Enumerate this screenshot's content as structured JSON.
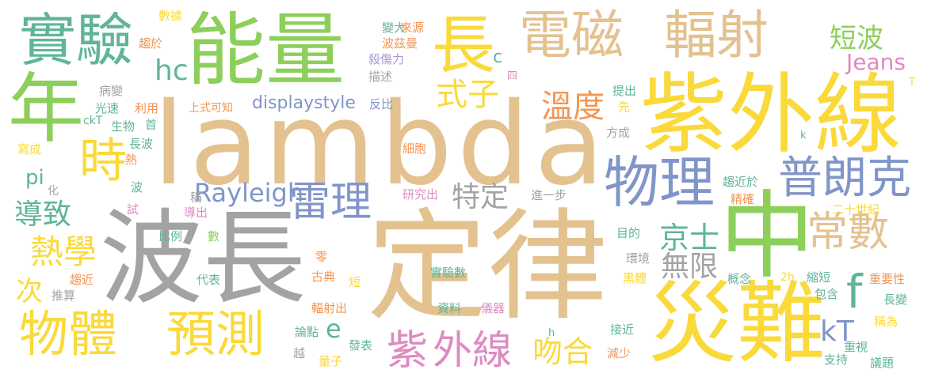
{
  "palette": {
    "tan": "#e3c28f",
    "gray": "#a3a3a3",
    "green": "#8ccf5a",
    "yellow": "#fad93b",
    "teal": "#5fb597",
    "blue": "#8095c9",
    "orange": "#f39552",
    "pink": "#df8ac1",
    "purple": "#a995d5"
  },
  "words": [
    {
      "text": "lambda",
      "color": "tan"
    },
    {
      "text": "波長",
      "color": "gray"
    },
    {
      "text": "定律",
      "color": "tan"
    },
    {
      "text": "能量",
      "color": "green"
    },
    {
      "text": "紫外線",
      "color": "yellow"
    },
    {
      "text": "電磁",
      "color": "tan"
    },
    {
      "text": "輻射",
      "color": "tan"
    },
    {
      "text": "年",
      "color": "green"
    },
    {
      "text": "中",
      "color": "green"
    },
    {
      "text": "災難",
      "color": "yellow"
    },
    {
      "text": "實驗",
      "color": "teal"
    },
    {
      "text": "長",
      "color": "yellow"
    },
    {
      "text": "物理",
      "color": "blue"
    },
    {
      "text": "普朗克",
      "color": "blue"
    },
    {
      "text": "物體",
      "color": "yellow"
    },
    {
      "text": "預測",
      "color": "yellow"
    },
    {
      "text": "時",
      "color": "yellow"
    },
    {
      "text": "雷理",
      "color": "blue"
    },
    {
      "text": "常數",
      "color": "tan"
    },
    {
      "text": "紫",
      "color": "pink"
    },
    {
      "text": "外線",
      "color": "pink"
    },
    {
      "text": "熱學",
      "color": "yellow"
    },
    {
      "text": "溫度",
      "color": "orange"
    },
    {
      "text": "式子",
      "color": "yellow"
    },
    {
      "text": "短波",
      "color": "green"
    },
    {
      "text": "Rayleigh",
      "color": "blue"
    },
    {
      "text": "特定",
      "color": "gray"
    },
    {
      "text": "京士",
      "color": "teal"
    },
    {
      "text": "無限",
      "color": "gray"
    },
    {
      "text": "導致",
      "color": "teal"
    },
    {
      "text": "吻合",
      "color": "yellow"
    },
    {
      "text": "hc",
      "color": "teal"
    },
    {
      "text": "f",
      "color": "teal"
    },
    {
      "text": "kT",
      "color": "blue"
    },
    {
      "text": "Jeans",
      "color": "pink"
    },
    {
      "text": "displaystyle",
      "color": "blue"
    },
    {
      "text": "次",
      "color": "yellow"
    },
    {
      "text": "e",
      "color": "teal"
    },
    {
      "text": "c",
      "color": "teal"
    },
    {
      "text": "pi",
      "color": "teal"
    },
    {
      "text": "數據",
      "color": "yellow"
    },
    {
      "text": "趨於",
      "color": "orange"
    },
    {
      "text": "變大",
      "color": "teal"
    },
    {
      "text": "來源",
      "color": "orange"
    },
    {
      "text": "波茲曼",
      "color": "orange"
    },
    {
      "text": "殺傷力",
      "color": "purple"
    },
    {
      "text": "描述",
      "color": "gray"
    },
    {
      "text": "病變",
      "color": "gray"
    },
    {
      "text": "光速",
      "color": "teal"
    },
    {
      "text": "利用",
      "color": "orange"
    },
    {
      "text": "上式可知",
      "color": "orange"
    },
    {
      "text": "反比",
      "color": "blue"
    },
    {
      "text": "提出",
      "color": "teal"
    },
    {
      "text": "先",
      "color": "yellow"
    },
    {
      "text": "生物",
      "color": "teal"
    },
    {
      "text": "首",
      "color": "teal"
    },
    {
      "text": "ckT",
      "color": "teal"
    },
    {
      "text": "寫成",
      "color": "yellow"
    },
    {
      "text": "長波",
      "color": "teal"
    },
    {
      "text": "細胞",
      "color": "orange"
    },
    {
      "text": "方成",
      "color": "gray"
    },
    {
      "text": "熱",
      "color": "orange"
    },
    {
      "text": "波",
      "color": "teal"
    },
    {
      "text": "化",
      "color": "gray"
    },
    {
      "text": "稱",
      "color": "gray"
    },
    {
      "text": "試",
      "color": "pink"
    },
    {
      "text": "導出",
      "color": "pink"
    },
    {
      "text": "研究出",
      "color": "pink"
    },
    {
      "text": "進一步",
      "color": "gray"
    },
    {
      "text": "趨近於",
      "color": "teal"
    },
    {
      "text": "精確",
      "color": "orange"
    },
    {
      "text": "二十世紀",
      "color": "yellow"
    },
    {
      "text": "比例",
      "color": "teal"
    },
    {
      "text": "數",
      "color": "green"
    },
    {
      "text": "目的",
      "color": "teal"
    },
    {
      "text": "環境",
      "color": "gray"
    },
    {
      "text": "零",
      "color": "orange"
    },
    {
      "text": "概念",
      "color": "teal"
    },
    {
      "text": "2h",
      "color": "yellow"
    },
    {
      "text": "縮短",
      "color": "teal"
    },
    {
      "text": "重要性",
      "color": "orange"
    },
    {
      "text": "趨近",
      "color": "orange"
    },
    {
      "text": "代表",
      "color": "teal"
    },
    {
      "text": "古典",
      "color": "orange"
    },
    {
      "text": "短",
      "color": "yellow"
    },
    {
      "text": "實驗數",
      "color": "teal"
    },
    {
      "text": "黑體",
      "color": "yellow"
    },
    {
      "text": "包含",
      "color": "teal"
    },
    {
      "text": "推算",
      "color": "gray"
    },
    {
      "text": "輻射出",
      "color": "orange"
    },
    {
      "text": "資料",
      "color": "teal"
    },
    {
      "text": "儀器",
      "color": "pink"
    },
    {
      "text": "長變",
      "color": "teal"
    },
    {
      "text": "稱為",
      "color": "yellow"
    },
    {
      "text": "論點",
      "color": "teal"
    },
    {
      "text": "接近",
      "color": "teal"
    },
    {
      "text": "h",
      "color": "teal"
    },
    {
      "text": "越",
      "color": "gray"
    },
    {
      "text": "發表",
      "color": "teal"
    },
    {
      "text": "減少",
      "color": "orange"
    },
    {
      "text": "重視",
      "color": "teal"
    },
    {
      "text": "量子",
      "color": "yellow"
    },
    {
      "text": "支持",
      "color": "teal"
    },
    {
      "text": "議題",
      "color": "teal"
    },
    {
      "text": "四",
      "color": "pink"
    },
    {
      "text": "k",
      "color": "teal"
    },
    {
      "text": "T",
      "color": "yellow"
    }
  ]
}
